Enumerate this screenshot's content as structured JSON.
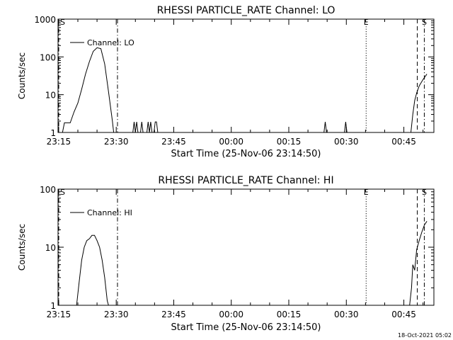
{
  "footer_date": "18-Oct-2021 05:02",
  "chart_data": [
    {
      "type": "line",
      "title": "RHESSI PARTICLE_RATE Channel: LO",
      "xlabel": "Start Time (25-Nov-06 23:14:50)",
      "ylabel": "Counts/sec",
      "y_scale": "log",
      "ylim": [
        1,
        1000
      ],
      "y_ticks": [
        1,
        10,
        100,
        1000
      ],
      "y_tick_labels": [
        "1",
        "10",
        "100",
        "1000"
      ],
      "xlim": [
        "23:14:50",
        "00:52:50"
      ],
      "x_ticks": [
        "23:15",
        "23:30",
        "23:45",
        "00:00",
        "00:15",
        "00:30",
        "00:45"
      ],
      "legend_position": "top-left",
      "series": [
        {
          "name": "Channel: LO",
          "points": [
            [
              "23:15:00",
              1
            ],
            [
              "23:16:00",
              1
            ],
            [
              "23:16:30",
              1.8
            ],
            [
              "23:18:00",
              1.8
            ],
            [
              "23:19:00",
              3.5
            ],
            [
              "23:20:00",
              6
            ],
            [
              "23:21:00",
              14
            ],
            [
              "23:22:00",
              35
            ],
            [
              "23:23:00",
              75
            ],
            [
              "23:24:00",
              140
            ],
            [
              "23:25:00",
              175
            ],
            [
              "23:26:00",
              165
            ],
            [
              "23:27:00",
              65
            ],
            [
              "23:28:00",
              12
            ],
            [
              "23:29:00",
              2
            ],
            [
              "23:29:20",
              1
            ],
            [
              "23:34:20",
              1
            ],
            [
              "23:34:40",
              1.9
            ],
            [
              "23:35:00",
              1
            ],
            [
              "23:35:20",
              1.9
            ],
            [
              "23:35:40",
              1
            ],
            [
              "23:36:20",
              1
            ],
            [
              "23:36:40",
              1.9
            ],
            [
              "23:37:00",
              1
            ],
            [
              "23:38:00",
              1
            ],
            [
              "23:38:20",
              1.9
            ],
            [
              "23:38:40",
              1
            ],
            [
              "23:39:00",
              1.9
            ],
            [
              "23:39:20",
              1
            ],
            [
              "23:39:50",
              1
            ],
            [
              "23:40:10",
              1.9
            ],
            [
              "23:40:30",
              1.9
            ],
            [
              "23:40:50",
              1
            ],
            [
              "00:24:10",
              1
            ],
            [
              "00:24:30",
              1.9
            ],
            [
              "00:24:50",
              1
            ],
            [
              "00:29:30",
              1
            ],
            [
              "00:29:50",
              1.9
            ],
            [
              "00:30:10",
              1
            ],
            [
              "00:46:50",
              1
            ],
            [
              "00:47:20",
              3
            ],
            [
              "00:47:50",
              7
            ],
            [
              "00:48:20",
              11
            ],
            [
              "00:49:00",
              17
            ],
            [
              "00:50:00",
              25
            ],
            [
              "00:51:00",
              35
            ]
          ]
        }
      ],
      "markers": [
        {
          "label": "S",
          "time": "23:14:50",
          "style": "dashed-dotted",
          "label_prints": true
        },
        {
          "label": "",
          "time": "23:30:20",
          "style": "dash-dot"
        },
        {
          "label": "E",
          "time": "00:35:10",
          "style": "dotted"
        },
        {
          "label": "",
          "time": "00:48:30",
          "style": "dashed"
        },
        {
          "label": "S",
          "time": "00:50:20",
          "style": "dash-dot"
        }
      ]
    },
    {
      "type": "line",
      "title": "RHESSI PARTICLE_RATE Channel: HI",
      "xlabel": "Start Time (25-Nov-06 23:14:50)",
      "ylabel": "Counts/sec",
      "y_scale": "log",
      "ylim": [
        1,
        100
      ],
      "y_ticks": [
        1,
        10,
        100
      ],
      "y_tick_labels": [
        "1",
        "10",
        "100"
      ],
      "xlim": [
        "23:14:50",
        "00:52:50"
      ],
      "x_ticks": [
        "23:15",
        "23:30",
        "23:45",
        "00:00",
        "00:15",
        "00:30",
        "00:45"
      ],
      "legend_position": "top-left",
      "series": [
        {
          "name": "Channel: HI",
          "points": [
            [
              "23:19:40",
              1
            ],
            [
              "23:20:20",
              2.5
            ],
            [
              "23:21:00",
              6
            ],
            [
              "23:21:40",
              10
            ],
            [
              "23:22:20",
              13
            ],
            [
              "23:23:00",
              14
            ],
            [
              "23:23:40",
              16
            ],
            [
              "23:24:20",
              16
            ],
            [
              "23:25:00",
              13
            ],
            [
              "23:25:40",
              10
            ],
            [
              "23:26:20",
              6
            ],
            [
              "23:27:00",
              3
            ],
            [
              "23:27:40",
              1.2
            ],
            [
              "23:28:00",
              1
            ],
            [
              "00:46:30",
              1
            ],
            [
              "00:47:00",
              2
            ],
            [
              "00:47:20",
              5
            ],
            [
              "00:47:50",
              4
            ],
            [
              "00:48:20",
              9
            ],
            [
              "00:49:00",
              13
            ],
            [
              "00:49:40",
              18
            ],
            [
              "00:50:20",
              24
            ],
            [
              "00:51:00",
              28
            ]
          ]
        }
      ],
      "markers": [
        {
          "label": "S",
          "time": "23:14:50",
          "style": "dashed-dotted",
          "label_prints": true
        },
        {
          "label": "",
          "time": "23:30:20",
          "style": "dash-dot"
        },
        {
          "label": "E",
          "time": "00:35:10",
          "style": "dotted"
        },
        {
          "label": "",
          "time": "00:48:30",
          "style": "dashed"
        },
        {
          "label": "S",
          "time": "00:50:20",
          "style": "dash-dot"
        }
      ]
    }
  ]
}
